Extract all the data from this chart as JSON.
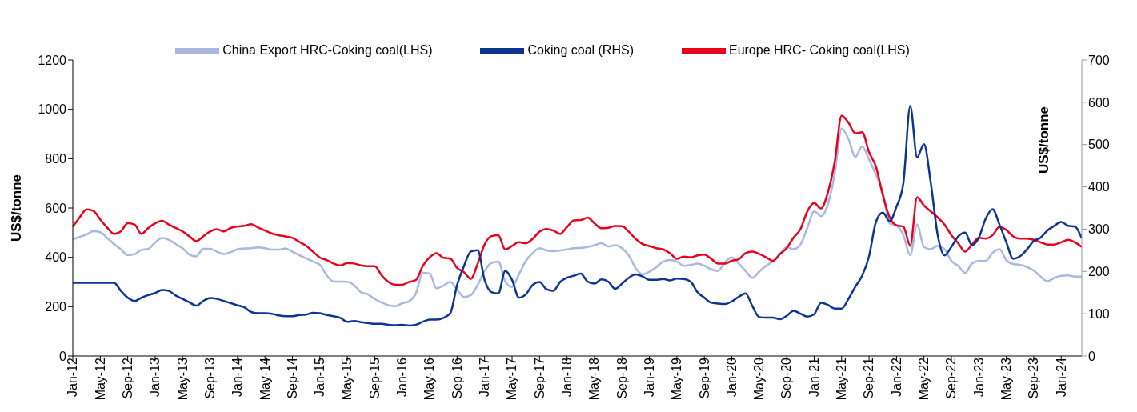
{
  "chart_data": {
    "type": "line",
    "ylabel": "US$/tonne",
    "y2label": "US$/tonne",
    "categories": [
      "Jan-12",
      null,
      null,
      null,
      "May-12",
      null,
      null,
      null,
      "Sep-12",
      null,
      null,
      null,
      "Jan-13",
      null,
      null,
      null,
      "May-13",
      null,
      null,
      null,
      "Sep-13",
      null,
      null,
      null,
      "Jan-14",
      null,
      null,
      null,
      "May-14",
      null,
      null,
      null,
      "Sep-14",
      null,
      null,
      null,
      "Jan-15",
      null,
      null,
      null,
      "May-15",
      null,
      null,
      null,
      "Sep-15",
      null,
      null,
      null,
      "Jan-16",
      null,
      null,
      null,
      "May-16",
      null,
      null,
      null,
      "Sep-16",
      null,
      null,
      null,
      "Jan-17",
      null,
      null,
      null,
      "May-17",
      null,
      null,
      null,
      "Sep-17",
      null,
      null,
      null,
      "Jan-18",
      null,
      null,
      null,
      "May-18",
      null,
      null,
      null,
      "Sep-18",
      null,
      null,
      null,
      "Jan-19",
      null,
      null,
      null,
      "May-19",
      null,
      null,
      null,
      "Sep-19",
      null,
      null,
      null,
      "Jan-20",
      null,
      null,
      null,
      "May-20",
      null,
      null,
      null,
      "Sep-20",
      null,
      null,
      null,
      "Jan-21",
      null,
      null,
      null,
      "May-21",
      null,
      null,
      null,
      "Sep-21",
      null,
      null,
      null,
      "Jan-22",
      null,
      null,
      null,
      "May-22",
      null,
      null,
      null,
      "Sep-22",
      null,
      null,
      null,
      "Jan-23",
      null,
      null,
      null,
      "May-23",
      null,
      null,
      null,
      "Sep-23",
      null,
      null,
      null,
      "Jan-24",
      null,
      null,
      null
    ],
    "series": [
      {
        "name": "China Export HRC-Coking coal(LHS)",
        "color": "#a9b8e0",
        "values": [
          473,
          483,
          493,
          506,
          502,
          479,
          454,
          433,
          409,
          413,
          430,
          434,
          460,
          478,
          471,
          454,
          437,
          411,
          404,
          435,
          435,
          423,
          413,
          421,
          433,
          436,
          437,
          440,
          437,
          431,
          431,
          436,
          423,
          409,
          396,
          383,
          370,
          327,
          302,
          302,
          301,
          287,
          258,
          250,
          231,
          217,
          206,
          202,
          214,
          222,
          255,
          337,
          334,
          274,
          285,
          300,
          270,
          239,
          247,
          288,
          345,
          377,
          383,
          303,
          280,
          331,
          385,
          417,
          437,
          428,
          425,
          428,
          432,
          437,
          438,
          442,
          449,
          457,
          444,
          449,
          437,
          408,
          356,
          331,
          342,
          360,
          383,
          389,
          383,
          366,
          369,
          375,
          366,
          351,
          345,
          380,
          400,
          375,
          345,
          317,
          342,
          366,
          383,
          413,
          442,
          433,
          452,
          519,
          586,
          567,
          615,
          740,
          922,
          880,
          807,
          850,
          797,
          735,
          663,
          538,
          529,
          490,
          409,
          533,
          442,
          433,
          447,
          433,
          385,
          365,
          337,
          375,
          385,
          385,
          418,
          433,
          389,
          373,
          370,
          361,
          346,
          322,
          303,
          317,
          325,
          327,
          322,
          322
        ]
      },
      {
        "name": "Europe HRC- Coking coal(LHS)",
        "color": "#e8001c",
        "values": [
          524,
          562,
          594,
          588,
          553,
          521,
          495,
          505,
          538,
          533,
          495,
          519,
          538,
          548,
          533,
          519,
          505,
          485,
          466,
          485,
          505,
          514,
          505,
          519,
          525,
          528,
          534,
          521,
          509,
          497,
          490,
          485,
          479,
          463,
          447,
          423,
          399,
          389,
          375,
          367,
          377,
          375,
          367,
          364,
          364,
          327,
          300,
          289,
          289,
          300,
          308,
          365,
          400,
          417,
          398,
          395,
          357,
          340,
          313,
          375,
          452,
          486,
          490,
          432,
          446,
          461,
          457,
          475,
          504,
          515,
          509,
          495,
          523,
          550,
          551,
          561,
          538,
          518,
          520,
          527,
          526,
          504,
          475,
          454,
          446,
          437,
          432,
          417,
          394,
          403,
          400,
          408,
          411,
          394,
          375,
          375,
          386,
          392,
          417,
          423,
          414,
          400,
          386,
          413,
          437,
          480,
          514,
          586,
          620,
          598,
          663,
          788,
          975,
          946,
          903,
          907,
          826,
          768,
          653,
          562,
          530,
          524,
          447,
          644,
          610,
          586,
          562,
          533,
          490,
          457,
          423,
          452,
          479,
          476,
          490,
          524,
          511,
          485,
          476,
          476,
          471,
          461,
          452,
          452,
          461,
          471,
          461,
          442
        ]
      },
      {
        "name": "Coking coal (RHS)",
        "color": "#0d3590",
        "axis": "y2",
        "values": [
          173,
          173,
          173,
          173,
          173,
          173,
          173,
          154,
          138,
          130,
          138,
          144,
          149,
          156,
          154,
          143,
          135,
          127,
          119,
          130,
          137,
          135,
          130,
          125,
          120,
          115,
          104,
          101,
          101,
          100,
          96,
          94,
          94,
          97,
          98,
          102,
          101,
          97,
          94,
          90,
          81,
          83,
          80,
          78,
          76,
          76,
          74,
          73,
          74,
          72,
          74,
          81,
          86,
          86,
          90,
          101,
          168,
          213,
          247,
          250,
          180,
          151,
          148,
          201,
          180,
          138,
          146,
          168,
          175,
          158,
          154,
          175,
          185,
          190,
          195,
          176,
          171,
          181,
          176,
          159,
          171,
          185,
          193,
          188,
          180,
          180,
          182,
          179,
          183,
          182,
          176,
          151,
          138,
          126,
          124,
          123,
          129,
          140,
          148,
          118,
          92,
          91,
          91,
          87,
          95,
          107,
          100,
          93,
          99,
          126,
          121,
          112,
          112,
          135,
          164,
          190,
          236,
          317,
          339,
          319,
          353,
          409,
          591,
          470,
          501,
          409,
          286,
          238,
          258,
          283,
          292,
          262,
          280,
          325,
          347,
          311,
          269,
          230,
          236,
          252,
          272,
          280,
          297,
          308,
          317,
          308,
          306,
          278
        ]
      }
    ],
    "ylim": [
      0,
      1200
    ],
    "yticks": [
      0,
      200,
      400,
      600,
      800,
      1000,
      1200
    ],
    "y2lim": [
      0,
      700
    ],
    "y2ticks": [
      0,
      100,
      200,
      300,
      400,
      500,
      600,
      700
    ],
    "legend": "top"
  }
}
